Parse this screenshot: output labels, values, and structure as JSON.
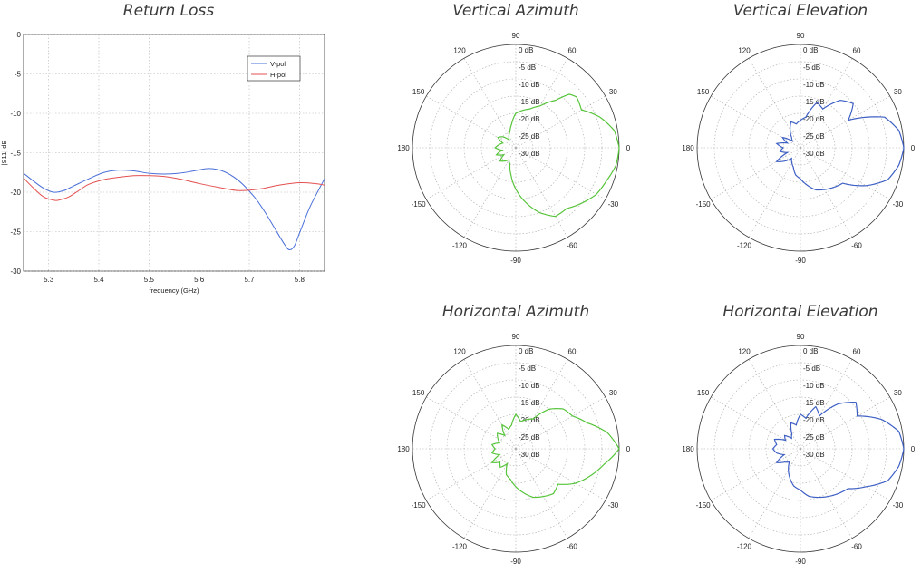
{
  "chart_data": [
    {
      "type": "line",
      "title": "Return Loss",
      "xlabel": "frequency (GHz)",
      "ylabel": "|S11| dB",
      "xlim": [
        5.25,
        5.85
      ],
      "ylim": [
        -30,
        0
      ],
      "xticks": [
        "5.3",
        "5.4",
        "5.5",
        "5.6",
        "5.7",
        "5.8"
      ],
      "yticks": [
        "0",
        "-5",
        "-10",
        "-15",
        "-20",
        "-25",
        "-30"
      ],
      "grid": true,
      "legend": "top-right",
      "series": [
        {
          "name": "V-pol",
          "color": "#4a6fd8",
          "x": [
            5.25,
            5.27,
            5.29,
            5.31,
            5.33,
            5.35,
            5.38,
            5.41,
            5.44,
            5.47,
            5.5,
            5.53,
            5.56,
            5.59,
            5.62,
            5.65,
            5.68,
            5.71,
            5.73,
            5.75,
            5.77,
            5.78,
            5.79,
            5.8,
            5.82,
            5.84,
            5.85
          ],
          "y": [
            -17.6,
            -18.6,
            -19.5,
            -20.0,
            -19.8,
            -19.2,
            -18.3,
            -17.5,
            -17.2,
            -17.3,
            -17.6,
            -17.7,
            -17.6,
            -17.3,
            -17.0,
            -17.4,
            -18.6,
            -20.6,
            -22.4,
            -24.5,
            -26.6,
            -27.3,
            -26.8,
            -25.2,
            -22.0,
            -19.5,
            -18.3
          ]
        },
        {
          "name": "H-pol",
          "color": "#e35050",
          "x": [
            5.25,
            5.27,
            5.29,
            5.31,
            5.32,
            5.34,
            5.36,
            5.38,
            5.41,
            5.44,
            5.47,
            5.5,
            5.53,
            5.56,
            5.6,
            5.64,
            5.68,
            5.72,
            5.76,
            5.8,
            5.83,
            5.85
          ],
          "y": [
            -18.2,
            -19.5,
            -20.6,
            -21.0,
            -21.0,
            -20.6,
            -19.8,
            -19.0,
            -18.4,
            -18.1,
            -17.9,
            -17.9,
            -18.0,
            -18.3,
            -18.9,
            -19.4,
            -19.8,
            -19.6,
            -19.1,
            -18.8,
            -18.9,
            -19.1
          ]
        }
      ]
    },
    {
      "type": "polar",
      "title": "Vertical Azimuth",
      "color": "#56c43a",
      "angles": [
        "0",
        "30",
        "60",
        "90",
        "120",
        "150",
        "180",
        "-150",
        "-120",
        "-90",
        "-60",
        "-30"
      ],
      "rings": [
        "0 dB",
        "-5 dB",
        "-10 dB",
        "-15 dB",
        "-20 dB",
        "-25 dB",
        "-30 dB"
      ],
      "rlim": [
        -30,
        0
      ],
      "pattern": {
        "angle_deg": [
          0,
          10,
          20,
          30,
          40,
          45,
          50,
          60,
          70,
          80,
          90,
          100,
          110,
          120,
          130,
          140,
          150,
          160,
          170,
          180,
          190,
          200,
          210,
          220,
          230,
          240,
          250,
          260,
          270,
          280,
          290,
          300,
          310,
          320,
          330,
          340,
          350
        ],
        "gain_db": [
          0,
          -1,
          -4,
          -8,
          -7,
          -8,
          -12,
          -16,
          -18,
          -19,
          -20,
          -23,
          -25,
          -26,
          -27,
          -25,
          -24,
          -26,
          -25,
          -24,
          -26,
          -24,
          -26,
          -24,
          -25,
          -26,
          -25,
          -22,
          -18,
          -14,
          -10,
          -7,
          -7,
          -5,
          -3,
          -2,
          -0.5
        ]
      }
    },
    {
      "type": "polar",
      "title": "Vertical Elevation",
      "color": "#3d5fc4",
      "angles": [
        "0",
        "30",
        "60",
        "90",
        "120",
        "150",
        "180",
        "-150",
        "-120",
        "-90",
        "-60",
        "-30"
      ],
      "rings": [
        "0 dB",
        "-5 dB",
        "-10 dB",
        "-15 dB",
        "-20 dB",
        "-25 dB",
        "-30 dB"
      ],
      "rlim": [
        -30,
        0
      ],
      "pattern": {
        "angle_deg": [
          0,
          10,
          20,
          30,
          40,
          50,
          60,
          70,
          80,
          90,
          100,
          110,
          120,
          130,
          140,
          150,
          160,
          170,
          180,
          190,
          200,
          210,
          220,
          230,
          240,
          250,
          260,
          270,
          280,
          290,
          300,
          310,
          320,
          330,
          340,
          350
        ],
        "gain_db": [
          0,
          -1,
          -4,
          -14,
          -10,
          -12,
          -17,
          -16,
          -21,
          -22,
          -23,
          -22,
          -24,
          -26,
          -27,
          -24,
          -26,
          -23,
          -25,
          -24,
          -26,
          -22,
          -24,
          -26,
          -25,
          -24,
          -22,
          -21,
          -19,
          -17,
          -16,
          -15,
          -14,
          -8,
          -3,
          -1
        ]
      }
    },
    {
      "type": "polar",
      "title": "Horizontal Azimuth",
      "color": "#56c43a",
      "angles": [
        "0",
        "30",
        "60",
        "90",
        "120",
        "150",
        "180",
        "-150",
        "-120",
        "-90",
        "-60",
        "-30"
      ],
      "rings": [
        "0 dB",
        "-5 dB",
        "-10 dB",
        "-15 dB",
        "-20 dB",
        "-25 dB",
        "-30 dB"
      ],
      "rlim": [
        -30,
        0
      ],
      "pattern": {
        "angle_deg": [
          0,
          10,
          20,
          30,
          40,
          50,
          60,
          70,
          80,
          90,
          100,
          110,
          120,
          130,
          140,
          150,
          160,
          170,
          180,
          190,
          200,
          210,
          220,
          230,
          240,
          250,
          260,
          270,
          280,
          290,
          300,
          310,
          320,
          330,
          340,
          350
        ],
        "gain_db": [
          0,
          -3,
          -8,
          -11,
          -12,
          -15,
          -20,
          -21,
          -22,
          -20,
          -23,
          -24,
          -22,
          -25,
          -23,
          -24,
          -25,
          -23,
          -24,
          -23,
          -25,
          -22,
          -24,
          -23,
          -25,
          -22,
          -21,
          -19,
          -17,
          -15,
          -14,
          -13,
          -14,
          -10,
          -7,
          -4
        ]
      }
    },
    {
      "type": "polar",
      "title": "Horizontal Elevation",
      "color": "#3d5fc4",
      "angles": [
        "0",
        "30",
        "60",
        "90",
        "120",
        "150",
        "180",
        "-150",
        "-120",
        "-90",
        "-60",
        "-30"
      ],
      "rings": [
        "0 dB",
        "-5 dB",
        "-10 dB",
        "-15 dB",
        "-20 dB",
        "-25 dB",
        "-30 dB"
      ],
      "rlim": [
        -30,
        0
      ],
      "pattern": {
        "angle_deg": [
          0,
          10,
          20,
          30,
          40,
          50,
          60,
          70,
          80,
          90,
          100,
          110,
          120,
          130,
          140,
          150,
          160,
          170,
          180,
          190,
          200,
          210,
          220,
          230,
          240,
          250,
          260,
          270,
          280,
          290,
          300,
          310,
          320,
          330,
          340,
          350
        ],
        "gain_db": [
          0,
          -1,
          -5,
          -11,
          -9,
          -13,
          -19,
          -17,
          -21,
          -20,
          -23,
          -22,
          -25,
          -26,
          -24,
          -25,
          -22,
          -23,
          -22,
          -23,
          -25,
          -22,
          -24,
          -25,
          -23,
          -21,
          -19,
          -18,
          -16,
          -15,
          -14,
          -13,
          -12,
          -8,
          -3,
          -1
        ]
      }
    }
  ]
}
